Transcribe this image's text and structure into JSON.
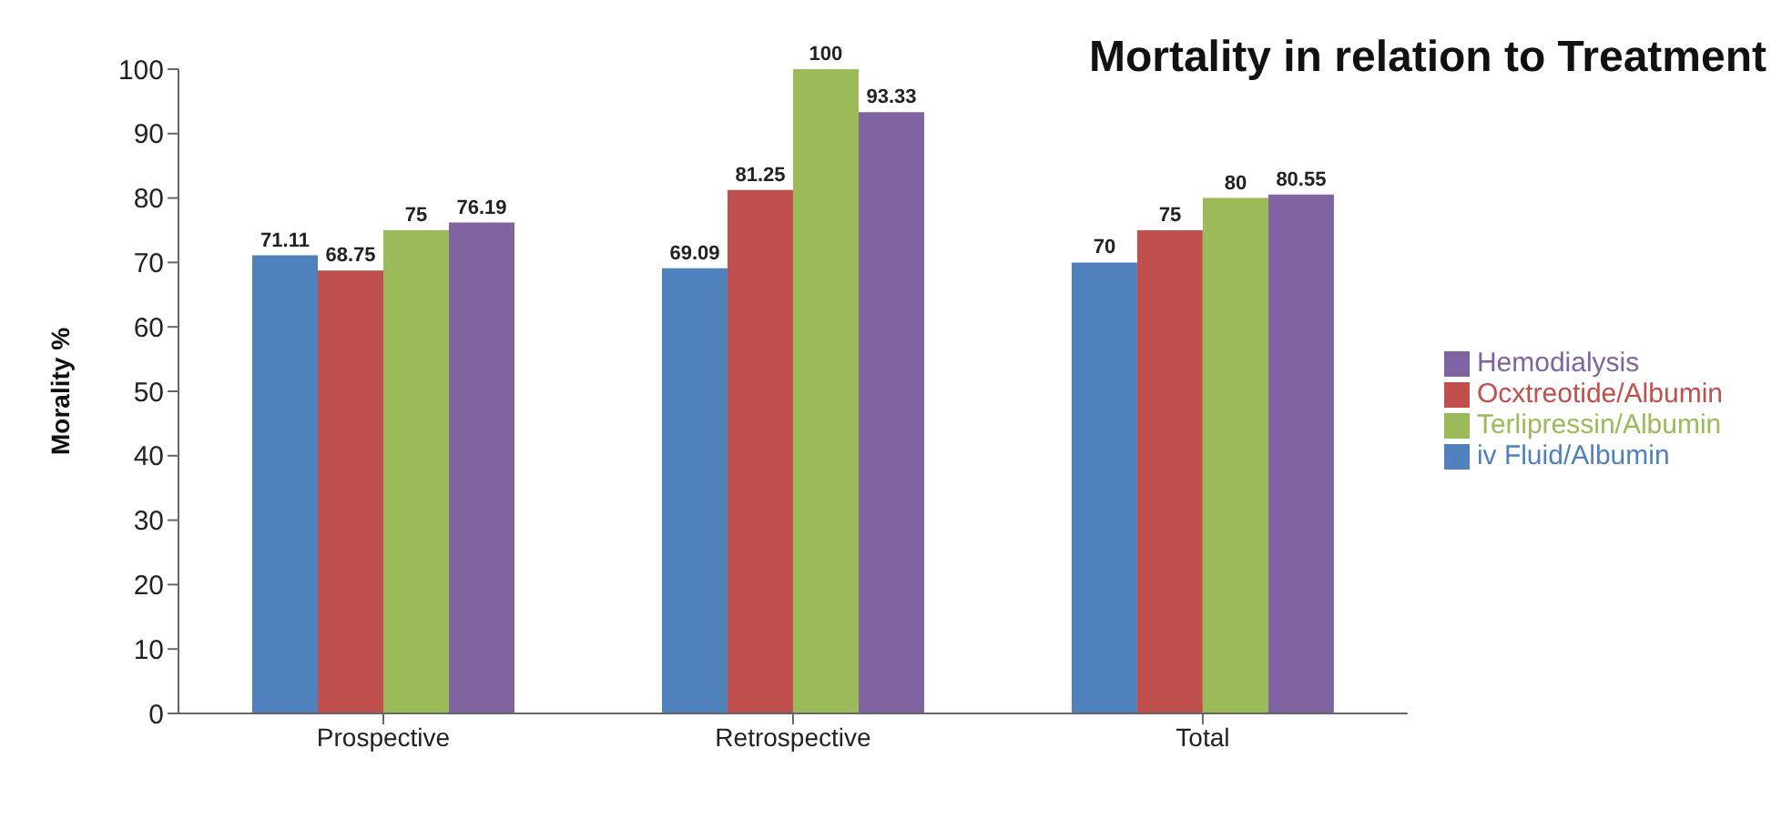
{
  "chart_data": {
    "type": "bar",
    "title": "Mortality in relation to  Treatment",
    "ylabel": "Morality %",
    "categories": [
      "Prospective",
      "Retrospective",
      "Total"
    ],
    "series": [
      {
        "name": "iv Fluid/Albumin",
        "color": "#4f81bd",
        "values": [
          71.11,
          69.09,
          70
        ]
      },
      {
        "name": "Ocxtreotide/Albumin",
        "color": "#c0504d",
        "values": [
          68.75,
          81.25,
          75
        ]
      },
      {
        "name": "Terlipressin/Albumin",
        "color": "#9bbb59",
        "values": [
          75,
          100,
          80
        ]
      },
      {
        "name": "Hemodialysis",
        "color": "#8064a2",
        "values": [
          76.19,
          93.33,
          80.55
        ]
      }
    ],
    "ylim": [
      0,
      100
    ],
    "yticks": [
      0,
      10,
      20,
      30,
      40,
      50,
      60,
      70,
      80,
      90,
      100
    ],
    "grid": false,
    "legend": "right",
    "data_labels": true
  }
}
